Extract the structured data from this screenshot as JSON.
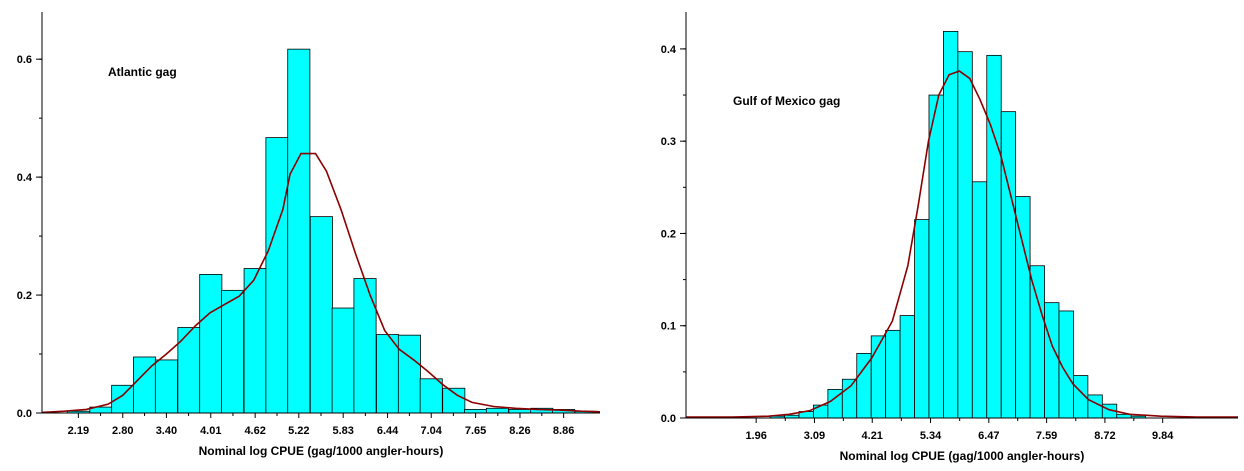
{
  "colors": {
    "bar_fill": "#00ffff",
    "bar_stroke": "#000000",
    "curve": "#8b0000",
    "axis": "#000000"
  },
  "chart_data": [
    {
      "type": "bar",
      "annotation": "Atlantic gag",
      "xlabel": "Nominal log CPUE (gag/1000 angler-hours)",
      "ylabel": "",
      "xlim": [
        1.69,
        9.36
      ],
      "ylim": [
        0,
        0.68
      ],
      "bin_width": 0.305,
      "xticks": [
        "2.19",
        "2.80",
        "3.40",
        "4.01",
        "4.62",
        "5.22",
        "5.83",
        "6.44",
        "7.04",
        "7.65",
        "8.26",
        "8.86"
      ],
      "xtick_values": [
        2.19,
        2.8,
        3.4,
        4.01,
        4.62,
        5.22,
        5.83,
        6.44,
        7.04,
        7.65,
        8.26,
        8.86
      ],
      "yticks": [
        "0.0",
        "0.2",
        "0.4",
        "0.6"
      ],
      "ytick_values": [
        0,
        0.2,
        0.4,
        0.6
      ],
      "bins": [
        {
          "x": 2.19,
          "y": 0.003
        },
        {
          "x": 2.5,
          "y": 0.01
        },
        {
          "x": 2.8,
          "y": 0.047
        },
        {
          "x": 3.1,
          "y": 0.095
        },
        {
          "x": 3.4,
          "y": 0.09
        },
        {
          "x": 3.71,
          "y": 0.145
        },
        {
          "x": 4.01,
          "y": 0.235
        },
        {
          "x": 4.31,
          "y": 0.208
        },
        {
          "x": 4.62,
          "y": 0.245
        },
        {
          "x": 4.92,
          "y": 0.467
        },
        {
          "x": 5.22,
          "y": 0.617
        },
        {
          "x": 5.53,
          "y": 0.333
        },
        {
          "x": 5.83,
          "y": 0.178
        },
        {
          "x": 6.13,
          "y": 0.228
        },
        {
          "x": 6.44,
          "y": 0.133
        },
        {
          "x": 6.74,
          "y": 0.132
        },
        {
          "x": 7.04,
          "y": 0.058
        },
        {
          "x": 7.35,
          "y": 0.042
        },
        {
          "x": 7.65,
          "y": 0.006
        },
        {
          "x": 7.95,
          "y": 0.008
        },
        {
          "x": 8.26,
          "y": 0.006
        },
        {
          "x": 8.56,
          "y": 0.008
        },
        {
          "x": 8.86,
          "y": 0.006
        },
        {
          "x": 9.17,
          "y": 0.003
        }
      ],
      "curve": [
        [
          1.69,
          0.001
        ],
        [
          2.0,
          0.003
        ],
        [
          2.3,
          0.006
        ],
        [
          2.6,
          0.015
        ],
        [
          2.8,
          0.03
        ],
        [
          3.0,
          0.055
        ],
        [
          3.2,
          0.08
        ],
        [
          3.4,
          0.1
        ],
        [
          3.6,
          0.122
        ],
        [
          3.8,
          0.148
        ],
        [
          4.0,
          0.17
        ],
        [
          4.2,
          0.184
        ],
        [
          4.4,
          0.198
        ],
        [
          4.6,
          0.225
        ],
        [
          4.8,
          0.275
        ],
        [
          5.0,
          0.345
        ],
        [
          5.1,
          0.405
        ],
        [
          5.25,
          0.44
        ],
        [
          5.45,
          0.44
        ],
        [
          5.6,
          0.41
        ],
        [
          5.8,
          0.345
        ],
        [
          6.0,
          0.27
        ],
        [
          6.2,
          0.2
        ],
        [
          6.4,
          0.14
        ],
        [
          6.6,
          0.108
        ],
        [
          6.8,
          0.09
        ],
        [
          7.0,
          0.07
        ],
        [
          7.2,
          0.048
        ],
        [
          7.4,
          0.03
        ],
        [
          7.6,
          0.018
        ],
        [
          7.9,
          0.011
        ],
        [
          8.2,
          0.008
        ],
        [
          8.5,
          0.006
        ],
        [
          8.8,
          0.005
        ],
        [
          9.1,
          0.003
        ],
        [
          9.36,
          0.002
        ]
      ]
    },
    {
      "type": "bar",
      "annotation": "Gulf of Mexico gag",
      "xlabel": "Nominal log CPUE (gag/1000 angler-hours)",
      "ylabel": "",
      "xlim": [
        0.6,
        11.3
      ],
      "ylim": [
        0,
        0.44
      ],
      "bin_width": 0.28,
      "xticks": [
        "1.96",
        "3.09",
        "4.21",
        "5.34",
        "6.47",
        "7.59",
        "8.72",
        "9.84"
      ],
      "xtick_values": [
        1.96,
        3.09,
        4.21,
        5.34,
        6.47,
        7.59,
        8.72,
        9.84
      ],
      "yticks": [
        "0.0",
        "0.1",
        "0.2",
        "0.3",
        "0.4"
      ],
      "ytick_values": [
        0,
        0.1,
        0.2,
        0.3,
        0.4
      ],
      "bins": [
        {
          "x": 2.37,
          "y": 0.002
        },
        {
          "x": 2.65,
          "y": 0.003
        },
        {
          "x": 2.93,
          "y": 0.007
        },
        {
          "x": 3.21,
          "y": 0.014
        },
        {
          "x": 3.49,
          "y": 0.031
        },
        {
          "x": 3.77,
          "y": 0.042
        },
        {
          "x": 4.05,
          "y": 0.07
        },
        {
          "x": 4.33,
          "y": 0.089
        },
        {
          "x": 4.61,
          "y": 0.095
        },
        {
          "x": 4.89,
          "y": 0.111
        },
        {
          "x": 5.17,
          "y": 0.215
        },
        {
          "x": 5.45,
          "y": 0.35
        },
        {
          "x": 5.73,
          "y": 0.419
        },
        {
          "x": 6.01,
          "y": 0.397
        },
        {
          "x": 6.29,
          "y": 0.256
        },
        {
          "x": 6.57,
          "y": 0.393
        },
        {
          "x": 6.85,
          "y": 0.332
        },
        {
          "x": 7.13,
          "y": 0.24
        },
        {
          "x": 7.41,
          "y": 0.165
        },
        {
          "x": 7.69,
          "y": 0.125
        },
        {
          "x": 7.97,
          "y": 0.116
        },
        {
          "x": 8.25,
          "y": 0.046
        },
        {
          "x": 8.53,
          "y": 0.025
        },
        {
          "x": 8.81,
          "y": 0.015
        },
        {
          "x": 9.09,
          "y": 0.004
        },
        {
          "x": 9.37,
          "y": 0.002
        }
      ],
      "curve": [
        [
          0.6,
          0.001
        ],
        [
          1.5,
          0.001
        ],
        [
          2.2,
          0.002
        ],
        [
          2.6,
          0.004
        ],
        [
          3.0,
          0.008
        ],
        [
          3.4,
          0.018
        ],
        [
          3.8,
          0.035
        ],
        [
          4.2,
          0.065
        ],
        [
          4.6,
          0.105
        ],
        [
          4.9,
          0.165
        ],
        [
          5.1,
          0.23
        ],
        [
          5.3,
          0.3
        ],
        [
          5.5,
          0.35
        ],
        [
          5.7,
          0.372
        ],
        [
          5.9,
          0.376
        ],
        [
          6.1,
          0.368
        ],
        [
          6.3,
          0.345
        ],
        [
          6.5,
          0.318
        ],
        [
          6.7,
          0.285
        ],
        [
          6.9,
          0.24
        ],
        [
          7.1,
          0.195
        ],
        [
          7.3,
          0.15
        ],
        [
          7.5,
          0.112
        ],
        [
          7.7,
          0.078
        ],
        [
          7.9,
          0.055
        ],
        [
          8.1,
          0.037
        ],
        [
          8.4,
          0.02
        ],
        [
          8.8,
          0.009
        ],
        [
          9.2,
          0.004
        ],
        [
          9.8,
          0.002
        ],
        [
          10.5,
          0.001
        ],
        [
          11.3,
          0.001
        ]
      ]
    }
  ]
}
